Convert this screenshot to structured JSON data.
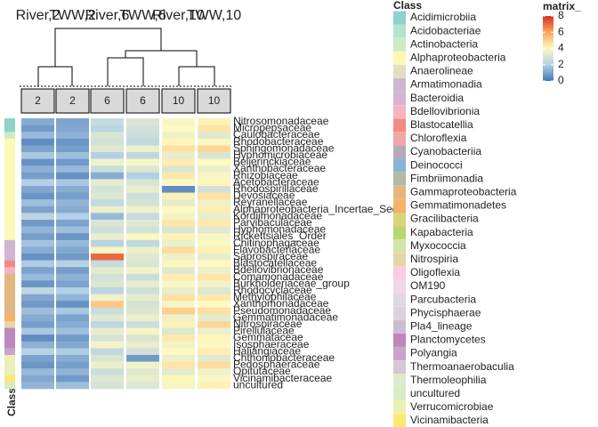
{
  "chart_data": {
    "type": "heatmap",
    "column_titles": [
      "River,2",
      "TWW,2",
      "River,6",
      "TWW,6",
      "River,10",
      "TWW,10"
    ],
    "column_annotation": [
      "2",
      "2",
      "6",
      "6",
      "10",
      "10"
    ],
    "row_annotation_title": "Class",
    "rows": [
      "Nitrosomonadaceae",
      "Micropepsaceae",
      "Caulobacteraceae",
      "Rhodobacteraceae",
      "Sphingomonadaceae",
      "Hyphomicrobiaceae",
      "Beijerinckiaceae",
      "Xanthobacteraceae",
      "Rhizobiaceae",
      "Acetobacteraceae",
      "Rhodospirillaceae",
      "Devosiaceae",
      "Reyranellaceae",
      "Alphaproteobacteria_Incertae_Sedis",
      "Kordiimonadaceae",
      "Parvibaculaceae",
      "Hyphomonadaceae",
      "Rickettsiales_Order",
      "Chitinophagaceae",
      "Flavobacteriaceae",
      "Saprospiraceae",
      "Blastocatellaceae",
      "Bdellovibrionaceae",
      "Comamonadaceae",
      "Burkholderiaceae_group",
      "Rhodocyclaceae",
      "Methylophilaceae",
      "Xanthomonadaceae",
      "Pseudomonadaceae",
      "Gemmatimonadaceae",
      "Nitrospiraceae",
      "Pirellulaceae",
      "Gemmataceae",
      "Isosphaeraceae",
      "Haliangiaceae",
      "Chthoniobacteraceae",
      "Pedosphaeraceae",
      "Opitutaceae",
      "Vicinamibacteraceae",
      "uncultured"
    ],
    "row_class": [
      "Acidimicrobiia",
      "Acidimicrobiia",
      "Actinobacteria",
      "Alphaproteobacteria",
      "Alphaproteobacteria",
      "Alphaproteobacteria",
      "Alphaproteobacteria",
      "Alphaproteobacteria",
      "Alphaproteobacteria",
      "Alphaproteobacteria",
      "Alphaproteobacteria",
      "Alphaproteobacteria",
      "Alphaproteobacteria",
      "Alphaproteobacteria",
      "Alphaproteobacteria",
      "Alphaproteobacteria",
      "Alphaproteobacteria",
      "Alphaproteobacteria",
      "Armatimonadia",
      "Bacteroidia",
      "Bacteroidia",
      "Blastocatellia",
      "Bdellovibrionia",
      "Gammaproteobacteria",
      "Gammaproteobacteria",
      "Gammaproteobacteria",
      "Gammaproteobacteria",
      "Gammaproteobacteria",
      "Gammaproteobacteria",
      "Gemmatimonadetes",
      "Nitrospiria",
      "Planctomycetes",
      "Planctomycetes",
      "Planctomycetes",
      "Polyangia",
      "Verrucomicrobiae",
      "Verrucomicrobiae",
      "Verrucomicrobiae",
      "Vicinamibacteria",
      "uncultured"
    ],
    "values": [
      [
        1.2,
        1.0,
        2.5,
        3.0,
        3.8,
        4.2
      ],
      [
        0.8,
        1.1,
        2.2,
        2.8,
        4.0,
        4.5
      ],
      [
        1.5,
        1.3,
        3.0,
        2.6,
        3.6,
        3.2
      ],
      [
        0.5,
        0.7,
        2.8,
        2.4,
        4.1,
        3.9
      ],
      [
        1.0,
        0.9,
        3.2,
        3.5,
        4.6,
        4.8
      ],
      [
        1.8,
        1.6,
        2.0,
        2.3,
        3.4,
        3.0
      ],
      [
        0.6,
        0.8,
        3.6,
        3.8,
        4.3,
        4.0
      ],
      [
        1.3,
        1.5,
        2.6,
        3.1,
        3.1,
        3.5
      ],
      [
        0.9,
        0.6,
        1.2,
        2.0,
        4.4,
        3.8
      ],
      [
        2.0,
        1.8,
        3.3,
        3.0,
        3.9,
        4.1
      ],
      [
        1.1,
        1.2,
        2.9,
        3.4,
        0.5,
        2.8
      ],
      [
        0.7,
        0.9,
        3.1,
        2.7,
        4.2,
        4.6
      ],
      [
        1.6,
        1.4,
        2.4,
        2.9,
        3.3,
        3.6
      ],
      [
        1.0,
        1.2,
        3.5,
        3.6,
        4.0,
        4.3
      ],
      [
        2.2,
        2.0,
        1.5,
        2.5,
        3.7,
        3.4
      ],
      [
        0.8,
        1.0,
        3.0,
        3.2,
        4.5,
        4.4
      ],
      [
        1.4,
        1.6,
        2.7,
        2.8,
        3.0,
        3.2
      ],
      [
        0.9,
        0.7,
        3.4,
        3.9,
        4.2,
        3.8
      ],
      [
        1.7,
        1.5,
        2.1,
        2.4,
        3.5,
        3.9
      ],
      [
        1.2,
        1.1,
        3.8,
        3.5,
        4.7,
        4.2
      ],
      [
        0.6,
        0.8,
        7.0,
        3.2,
        3.6,
        3.4
      ],
      [
        1.9,
        2.1,
        2.5,
        3.0,
        4.1,
        4.0
      ],
      [
        1.0,
        0.9,
        3.3,
        3.7,
        3.2,
        3.5
      ],
      [
        1.5,
        1.3,
        2.8,
        2.6,
        4.3,
        4.5
      ],
      [
        0.7,
        1.0,
        3.1,
        3.4,
        3.9,
        3.7
      ],
      [
        2.3,
        2.0,
        2.2,
        2.7,
        3.4,
        3.1
      ],
      [
        1.1,
        1.4,
        3.6,
        3.3,
        4.6,
        4.4
      ],
      [
        0.8,
        0.6,
        5.2,
        2.9,
        3.8,
        4.0
      ],
      [
        1.6,
        1.8,
        2.6,
        3.1,
        5.0,
        4.6
      ],
      [
        1.2,
        1.0,
        3.2,
        3.5,
        3.6,
        3.3
      ],
      [
        0.9,
        1.2,
        2.3,
        2.6,
        4.2,
        4.8
      ],
      [
        1.8,
        1.6,
        3.4,
        3.8,
        3.1,
        3.5
      ],
      [
        0.5,
        0.8,
        2.9,
        3.0,
        4.4,
        4.1
      ],
      [
        1.3,
        1.1,
        3.7,
        3.4,
        3.7,
        3.9
      ],
      [
        2.1,
        1.9,
        2.4,
        2.8,
        4.0,
        4.3
      ],
      [
        1.0,
        1.2,
        3.0,
        0.8,
        3.5,
        3.2
      ],
      [
        0.7,
        0.9,
        3.5,
        3.6,
        4.5,
        4.7
      ],
      [
        1.5,
        1.4,
        2.7,
        3.2,
        3.3,
        3.6
      ],
      [
        1.1,
        0.8,
        3.1,
        3.4,
        4.1,
        3.9
      ],
      [
        1.4,
        1.6,
        2.9,
        3.1,
        3.8,
        4.2
      ]
    ],
    "legend_title": "Class",
    "classes": [
      {
        "name": "Acidimicrobiia",
        "color": "#8dd3c7"
      },
      {
        "name": "Acidobacteriae",
        "color": "#b3e2cd"
      },
      {
        "name": "Actinobacteria",
        "color": "#ccebc5"
      },
      {
        "name": "Alphaproteobacteria",
        "color": "#fbf8b8"
      },
      {
        "name": "Anaerolineae",
        "color": "#e5dcc4"
      },
      {
        "name": "Armatimonadia",
        "color": "#cdb8cf"
      },
      {
        "name": "Bacteroidia",
        "color": "#d5b3d5"
      },
      {
        "name": "Bdellovibrionia",
        "color": "#f6b4c0"
      },
      {
        "name": "Blastocatellia",
        "color": "#f08c85"
      },
      {
        "name": "Chloroflexia",
        "color": "#f2a7a7"
      },
      {
        "name": "Cyanobacteriia",
        "color": "#b6a9b9"
      },
      {
        "name": "Deinococci",
        "color": "#86b5d6"
      },
      {
        "name": "Fimbriimonadia",
        "color": "#b5b8a2"
      },
      {
        "name": "Gammaproteobacteria",
        "color": "#e3b682"
      },
      {
        "name": "Gemmatimonadetes",
        "color": "#f6b366"
      },
      {
        "name": "Gracilibacteria",
        "color": "#d7d47b"
      },
      {
        "name": "Kapabacteria",
        "color": "#bcd66f"
      },
      {
        "name": "Myxococcia",
        "color": "#d7e2a6"
      },
      {
        "name": "Nitrospiria",
        "color": "#e4d6a9"
      },
      {
        "name": "Oligoflexia",
        "color": "#f9cce0"
      },
      {
        "name": "OM190",
        "color": "#f3d6e4"
      },
      {
        "name": "Parcubacteria",
        "color": "#e0d8df"
      },
      {
        "name": "Phycisphaerae",
        "color": "#dad3dc"
      },
      {
        "name": "Pla4_lineage",
        "color": "#cdbdd0"
      },
      {
        "name": "Planctomycetes",
        "color": "#bd86be"
      },
      {
        "name": "Polyangia",
        "color": "#c9a3cc"
      },
      {
        "name": "Thermoanaerobaculia",
        "color": "#d6c6d6"
      },
      {
        "name": "Thermoleophilia",
        "color": "#dfe8cd"
      },
      {
        "name": "uncultured",
        "color": "#d8ecc4"
      },
      {
        "name": "Verrucomicrobiae",
        "color": "#e8f1b3"
      },
      {
        "name": "Vicinamibacteria",
        "color": "#fbe972"
      }
    ],
    "scale_title": "matrix_",
    "scale_lim": [
      0,
      8
    ],
    "scale_ticks": [
      0,
      2,
      4,
      6,
      8
    ],
    "color_stops": [
      [
        0,
        "#4575b4"
      ],
      [
        2,
        "#b3d1e6"
      ],
      [
        4,
        "#fef9c0"
      ],
      [
        6,
        "#fca55d"
      ],
      [
        8,
        "#d73027"
      ]
    ]
  }
}
